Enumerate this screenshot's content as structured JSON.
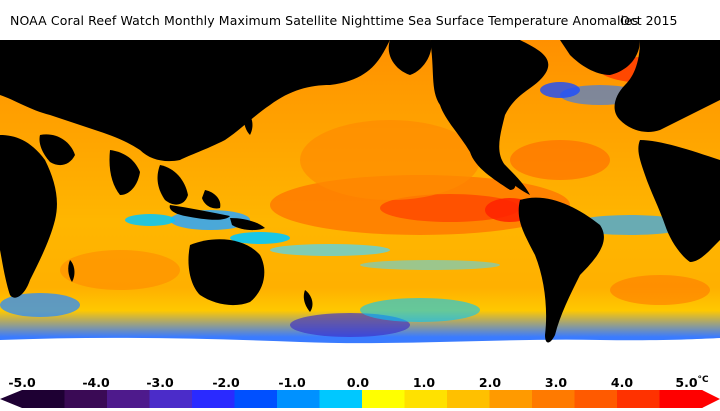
{
  "title": {
    "main": "NOAA Coral Reef Watch Monthly Maximum Satellite Nighttime Sea Surface Temperature Anomalies",
    "date": "Oct 2015"
  },
  "colors": {
    "land": "#000000",
    "ice": "#ffffff",
    "background": "#ffffff",
    "anomaly_scale": [
      "#1e0033",
      "#3a0a55",
      "#4e1a8c",
      "#4b2cc9",
      "#2a2aff",
      "#0050ff",
      "#0091ff",
      "#00c8ff",
      "#ffff00",
      "#ffe100",
      "#ffc000",
      "#ff9a00",
      "#ff7a00",
      "#ff5a00",
      "#ff3200",
      "#ff0000"
    ]
  },
  "colorbar": {
    "unit": "°C",
    "tick_labels": [
      "-5.0",
      "-4.0",
      "-3.0",
      "-2.0",
      "-1.0",
      "0.0",
      "1.0",
      "2.0",
      "3.0",
      "4.0",
      "5.0"
    ]
  }
}
